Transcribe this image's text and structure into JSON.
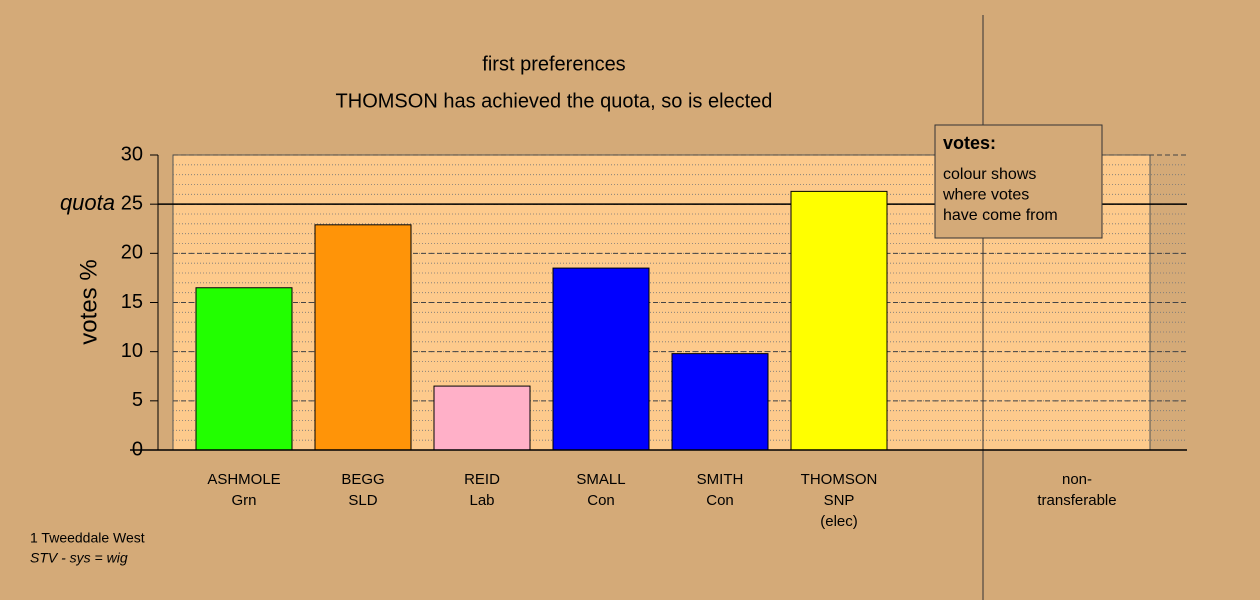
{
  "chart_data": {
    "type": "bar",
    "title": "first preferences",
    "subtitle": "THOMSON has achieved the quota, so is elected",
    "y_label": "votes %",
    "categories": [
      [
        "ASHMOLE",
        "Grn"
      ],
      [
        "BEGG",
        "SLD"
      ],
      [
        "REID",
        "Lab"
      ],
      [
        "SMALL",
        "Con"
      ],
      [
        "SMITH",
        "Con"
      ],
      [
        "THOMSON",
        "SNP",
        "(elec)"
      ],
      [
        "non-",
        "transferable"
      ]
    ],
    "values": [
      16.5,
      22.9,
      6.5,
      18.5,
      9.8,
      26.3,
      null
    ],
    "colors": [
      "#22ff00",
      "#ff9408",
      "#ffb0c8",
      "#0000ff",
      "#0000ff",
      "#ffff00",
      "#000000"
    ],
    "ylim": [
      0,
      30
    ],
    "yticks": [
      0,
      5,
      10,
      15,
      20,
      25,
      30
    ],
    "minor_grid_step": 1,
    "quota": {
      "value": 25,
      "label": "quota"
    },
    "legend": {
      "title": "votes:",
      "lines": [
        "colour shows",
        "where votes",
        "have come from"
      ]
    },
    "footer": [
      "1 Tweeddale West",
      "STV - sys = wig"
    ]
  }
}
